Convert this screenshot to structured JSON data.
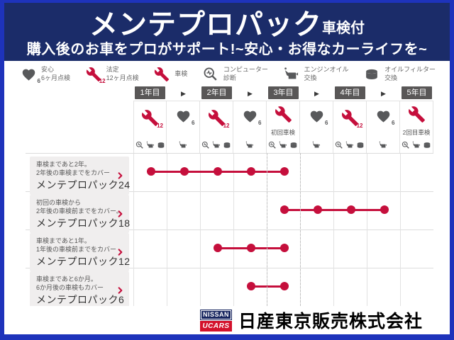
{
  "header": {
    "title": "メンテプロパック",
    "title_suffix": "車検付",
    "subtitle": "購入後のお車をプロがサポート!~安心・お得なカーライフを~"
  },
  "colors": {
    "accent_red": "#c50f3c",
    "icon_gray": "#58595b",
    "header_navy": "#1b2c69",
    "frame_blue": "#1e33bb",
    "badge_gray": "#595757"
  },
  "legend": {
    "items": [
      {
        "icon": "heart",
        "num": "6",
        "color": "gray",
        "lines": [
          "安心",
          "6ヶ月点検"
        ]
      },
      {
        "icon": "wrench",
        "num": "12",
        "color": "red",
        "lines": [
          "法定",
          "12ヶ月点検"
        ]
      },
      {
        "icon": "wrench",
        "num": "",
        "color": "red",
        "lines": [
          "車検"
        ]
      },
      {
        "icon": "diagnosis",
        "num": "",
        "color": "gray",
        "lines": [
          "コンピューター",
          "診断"
        ]
      },
      {
        "icon": "oil",
        "num": "",
        "color": "gray",
        "lines": [
          "エンジンオイル",
          "交換"
        ]
      },
      {
        "icon": "filter",
        "num": "",
        "color": "gray",
        "lines": [
          "オイルフィルター",
          "交換"
        ]
      }
    ]
  },
  "timeline": {
    "years": [
      "1年目",
      "2年目",
      "3年目",
      "4年目",
      "5年目"
    ],
    "arrow": "▶",
    "columns": [
      {
        "icon": "wrench",
        "num": "12",
        "label": "",
        "minis": [
          "diagnosis",
          "oil",
          "filter"
        ]
      },
      {
        "icon": "heart",
        "num": "6",
        "label": "",
        "minis": [
          "oil"
        ]
      },
      {
        "icon": "wrench",
        "num": "12",
        "label": "",
        "minis": [
          "diagnosis",
          "oil",
          "filter"
        ]
      },
      {
        "icon": "heart",
        "num": "6",
        "label": "",
        "minis": [
          "oil"
        ]
      },
      {
        "icon": "wrench",
        "num": "",
        "label": "初回車検",
        "minis": [
          "diagnosis",
          "oil",
          "filter"
        ]
      },
      {
        "icon": "heart",
        "num": "6",
        "label": "",
        "minis": [
          "oil"
        ]
      },
      {
        "icon": "wrench",
        "num": "12",
        "label": "",
        "minis": [
          "diagnosis",
          "oil",
          "filter"
        ]
      },
      {
        "icon": "heart",
        "num": "6",
        "label": "",
        "minis": [
          "oil"
        ]
      },
      {
        "icon": "wrench",
        "num": "",
        "label": "2回目車検",
        "minis": [
          "diagnosis",
          "oil",
          "filter"
        ]
      }
    ]
  },
  "plans": [
    {
      "desc1": "車検まであと2年。",
      "desc2": "2年後の車検までをカバー",
      "name": "メンテプロパック24",
      "start": 1,
      "end": 5
    },
    {
      "desc1": "初回の車検から",
      "desc2": "2年後の車検前までをカバー。",
      "name": "メンテプロパック18",
      "start": 5,
      "end": 8
    },
    {
      "desc1": "車検まであと1年。",
      "desc2": "1年後の車検前までをカバー",
      "name": "メンテプロパック12",
      "start": 3,
      "end": 5
    },
    {
      "desc1": "車検まであと6か月。",
      "desc2": "6か月後の車検もカバー",
      "name": "メンテプロパック6",
      "start": 4,
      "end": 5
    }
  ],
  "footer": {
    "logo_top": "NISSAN",
    "logo_bottom": "UCARS",
    "company": "日産東京販売株式会社"
  }
}
